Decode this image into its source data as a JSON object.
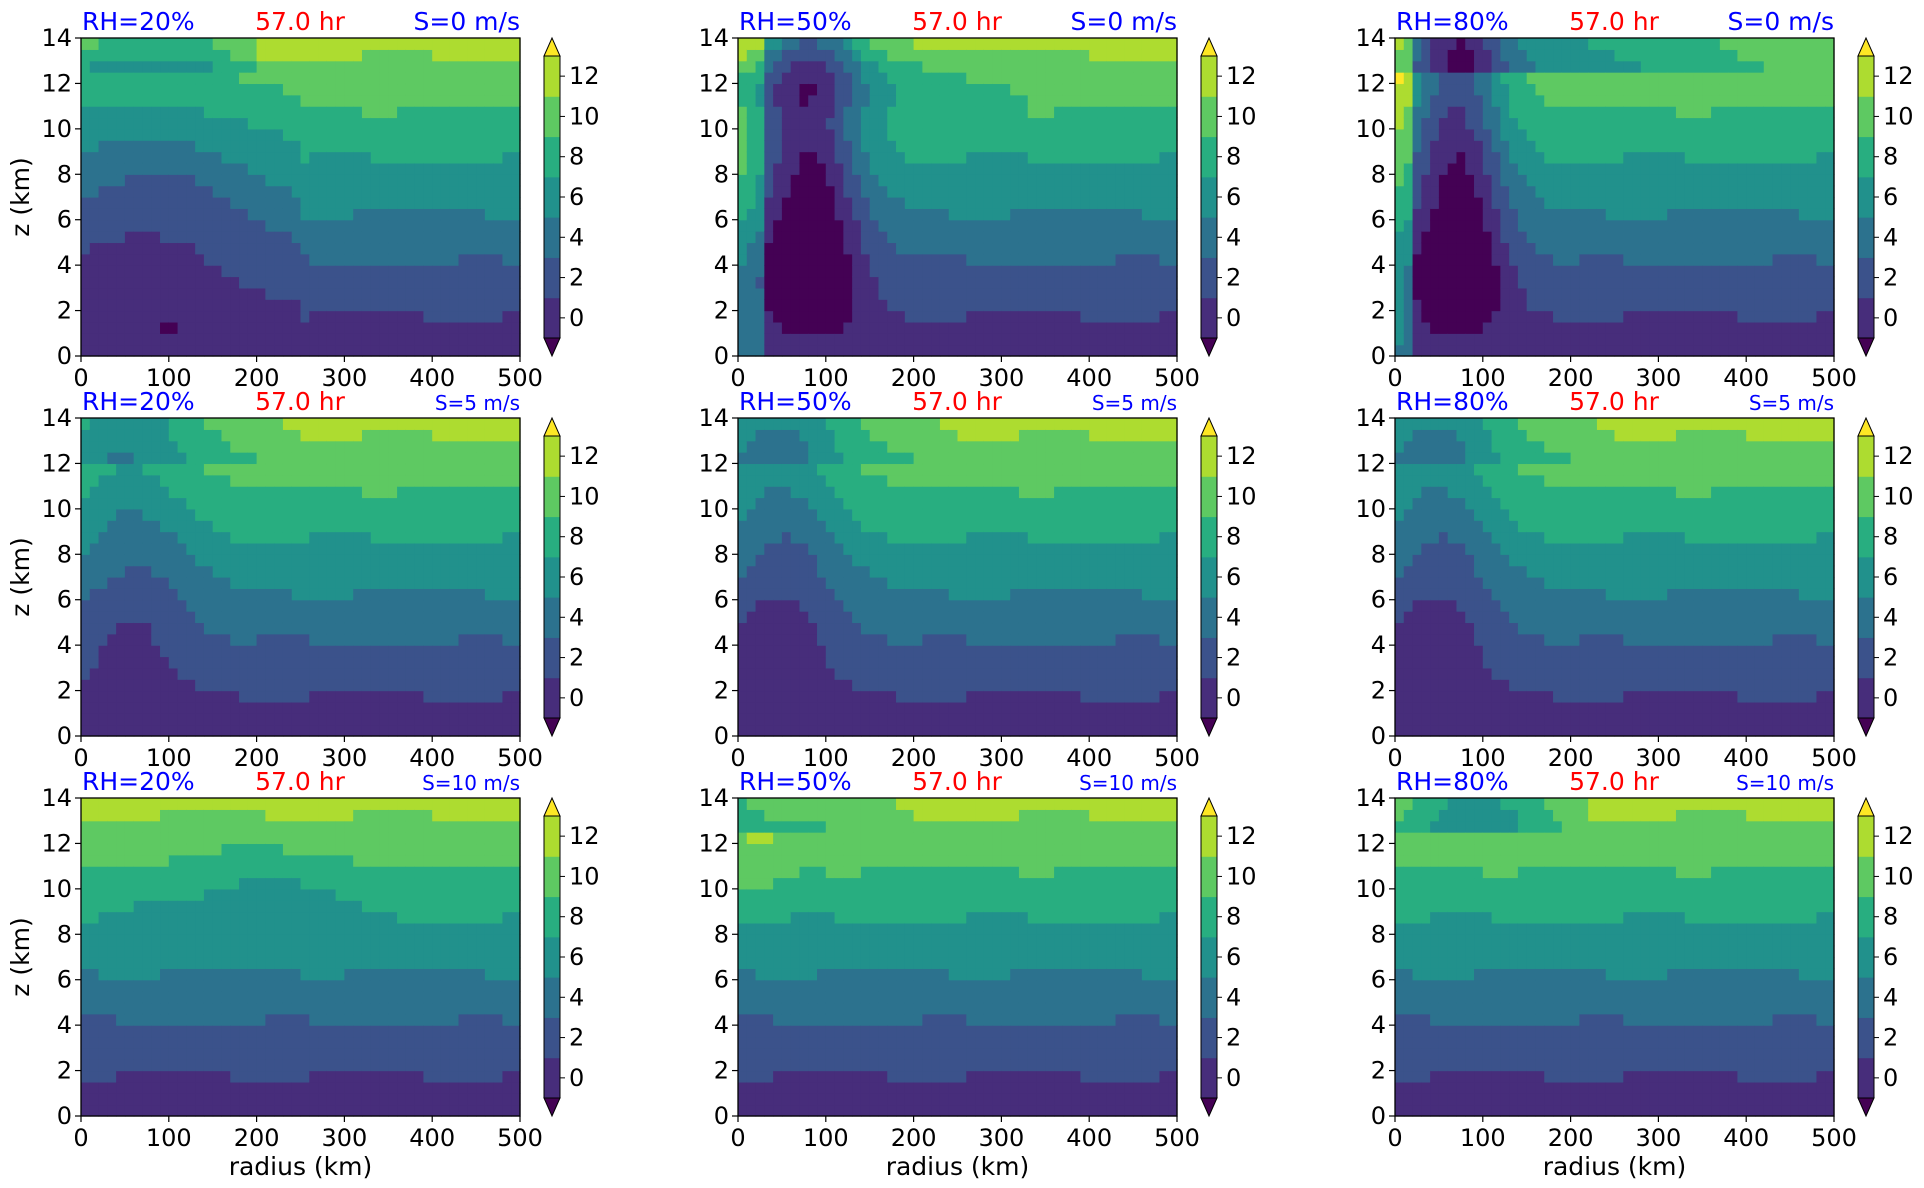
{
  "figure": {
    "x_tick_labels": [
      "0",
      "100",
      "200",
      "300",
      "400",
      "500"
    ],
    "y_tick_labels": [
      "0",
      "2",
      "4",
      "6",
      "8",
      "10",
      "12",
      "14"
    ],
    "colorbar_tick_labels": [
      "0",
      "2",
      "4",
      "6",
      "8",
      "10",
      "12"
    ],
    "ylabel": "z (km)",
    "xlabel": "radius (km)",
    "time_label": "57.0 hr",
    "colors": {
      "title_blue": "#0000ff",
      "title_red": "#ff0000",
      "levels": [
        "#440154",
        "#472d7b",
        "#3b528b",
        "#2c728e",
        "#21918c",
        "#28ae80",
        "#5ec962",
        "#addc30",
        "#fde725"
      ]
    }
  },
  "chart_data": {
    "type": "heatmap",
    "description_fields": "filled contour panels, 3 rows (shear) x 3 columns (relative humidity)",
    "x_range": [
      0,
      500
    ],
    "y_range": [
      0,
      14
    ],
    "color_levels": [
      0,
      2,
      4,
      6,
      8,
      10,
      12
    ],
    "colorbar_extend": "both",
    "panels": [
      {
        "rh": "RH=20%",
        "time": "57.0 hr",
        "shear": "S=0 m/s"
      },
      {
        "rh": "RH=50%",
        "time": "57.0 hr",
        "shear": "S=0 m/s"
      },
      {
        "rh": "RH=80%",
        "time": "57.0 hr",
        "shear": "S=0 m/s"
      },
      {
        "rh": "RH=20%",
        "time": "57.0 hr",
        "shear": "S=5 m/s"
      },
      {
        "rh": "RH=50%",
        "time": "57.0 hr",
        "shear": "S=5 m/s"
      },
      {
        "rh": "RH=80%",
        "time": "57.0 hr",
        "shear": "S=5 m/s"
      },
      {
        "rh": "RH=20%",
        "time": "57.0 hr",
        "shear": "S=10 m/s"
      },
      {
        "rh": "RH=50%",
        "time": "57.0 hr",
        "shear": "S=10 m/s"
      },
      {
        "rh": "RH=80%",
        "time": "57.0 hr",
        "shear": "S=10 m/s"
      }
    ]
  }
}
